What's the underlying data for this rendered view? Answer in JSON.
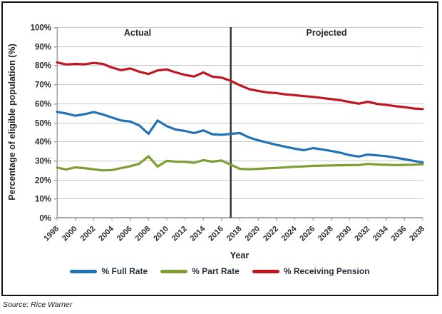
{
  "frame": {
    "source_note": "Source: Rice Warner"
  },
  "colors": {
    "gridline": "#c7c7c7",
    "axis": "#a3a3a3",
    "divider": "#2e2e2e",
    "tick_text": "#2e2e2e",
    "border": "#141414"
  },
  "chart_data": {
    "type": "line",
    "title": "",
    "xlabel": "Year",
    "ylabel": "Percentage of eligible population (%)",
    "x_start": 1998,
    "x_end": 2038,
    "x_step": 1,
    "ylim": [
      0,
      100
    ],
    "grid": "horizontal",
    "legend_position": "bottom",
    "x_tick_labels": [
      "1998",
      "2000",
      "2002",
      "2004",
      "2006",
      "2008",
      "2010",
      "2012",
      "2014",
      "2016",
      "2018",
      "2020",
      "2022",
      "2024",
      "2026",
      "2028",
      "2030",
      "2032",
      "2034",
      "2036",
      "2038"
    ],
    "y_tick_labels": [
      "0%",
      "10%",
      "20%",
      "30%",
      "40%",
      "50%",
      "60%",
      "70%",
      "80%",
      "90%",
      "100%"
    ],
    "annotations": {
      "left_region": "Actual",
      "right_region": "Projected",
      "divider_year": 2017
    },
    "series": [
      {
        "name": "% Full Rate",
        "color": "#2272b5",
        "values": [
          55.5,
          54.7,
          53.5,
          54.3,
          55.4,
          54.2,
          52.6,
          51.0,
          50.5,
          48.4,
          44.0,
          51.0,
          48.0,
          46.2,
          45.5,
          44.4,
          45.8,
          43.8,
          43.5,
          44.0,
          44.4,
          42.1,
          40.6,
          39.4,
          38.2,
          37.2,
          36.2,
          35.4,
          36.5,
          35.8,
          35.0,
          34.1,
          32.8,
          32.1,
          33.1,
          32.7,
          32.3,
          31.5,
          30.7,
          29.8,
          29.0
        ]
      },
      {
        "name": "% Part Rate",
        "color": "#7e9d32",
        "values": [
          26.3,
          25.3,
          26.4,
          26.0,
          25.4,
          24.8,
          25.0,
          26.0,
          27.0,
          28.3,
          32.2,
          26.8,
          29.8,
          29.4,
          29.3,
          28.8,
          30.2,
          29.4,
          30.0,
          27.8,
          25.6,
          25.4,
          25.6,
          25.9,
          26.1,
          26.4,
          26.7,
          26.9,
          27.2,
          27.3,
          27.4,
          27.5,
          27.6,
          27.6,
          28.2,
          27.9,
          27.7,
          27.6,
          27.7,
          27.8,
          28.0
        ]
      },
      {
        "name": "% Receiving Pension",
        "color": "#c01622",
        "values": [
          81.5,
          80.4,
          80.7,
          80.5,
          81.2,
          80.7,
          78.8,
          77.4,
          78.3,
          76.6,
          75.4,
          77.3,
          77.8,
          76.2,
          74.9,
          74.1,
          76.2,
          74.0,
          73.5,
          71.8,
          69.5,
          67.5,
          66.5,
          65.7,
          65.4,
          64.7,
          64.3,
          63.8,
          63.4,
          62.8,
          62.2,
          61.6,
          60.7,
          59.8,
          60.9,
          59.7,
          59.2,
          58.5,
          58.0,
          57.3,
          57.0
        ]
      }
    ]
  }
}
